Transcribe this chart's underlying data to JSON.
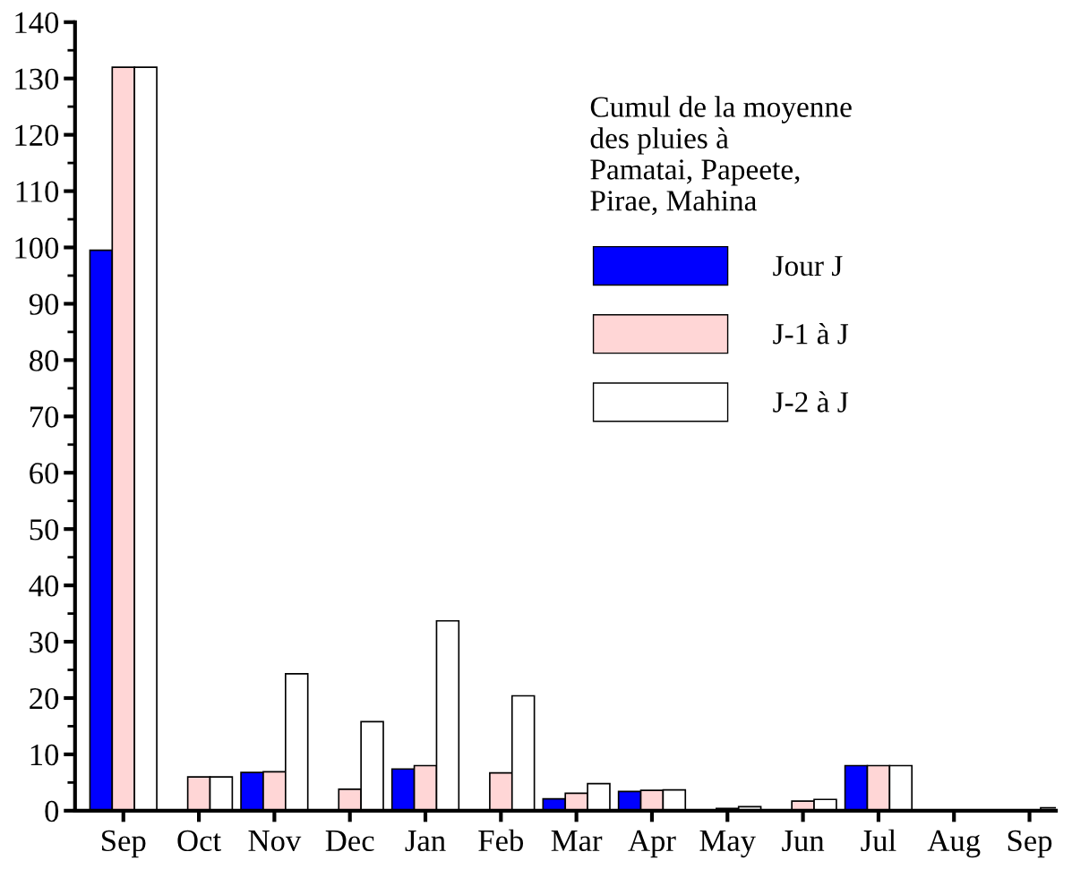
{
  "chart_data": {
    "type": "bar",
    "categories": [
      "Sep",
      "Oct",
      "Nov",
      "Dec",
      "Jan",
      "Feb",
      "Mar",
      "Apr",
      "May",
      "Jun",
      "Jul",
      "Aug",
      "Sep"
    ],
    "series": [
      {
        "name": "Jour J",
        "color": "#0000ff",
        "values": [
          99.5,
          0,
          6.8,
          0,
          7.4,
          0,
          2.1,
          3.4,
          0,
          0,
          8.0,
          0,
          0
        ]
      },
      {
        "name": "J-1 à J",
        "color": "#ffd6d6",
        "values": [
          132,
          6.0,
          6.9,
          3.8,
          8.0,
          6.7,
          3.1,
          3.6,
          0.4,
          1.7,
          8.0,
          0,
          0.1
        ]
      },
      {
        "name": "J-2 à J",
        "color": "#ffffff",
        "values": [
          132,
          6.0,
          24.3,
          15.8,
          33.7,
          20.4,
          4.8,
          3.7,
          0.7,
          2.0,
          8.0,
          0,
          0.5
        ]
      }
    ],
    "legend_title": "Cumul de la moyenne\ndes pluies à\nPamatai, Papeete,\nPirae, Mahina",
    "legend": "right",
    "ylim": [
      0,
      140
    ],
    "yticks": [
      0,
      10,
      20,
      30,
      40,
      50,
      60,
      70,
      80,
      90,
      100,
      110,
      120,
      130,
      140
    ],
    "grid": false
  }
}
